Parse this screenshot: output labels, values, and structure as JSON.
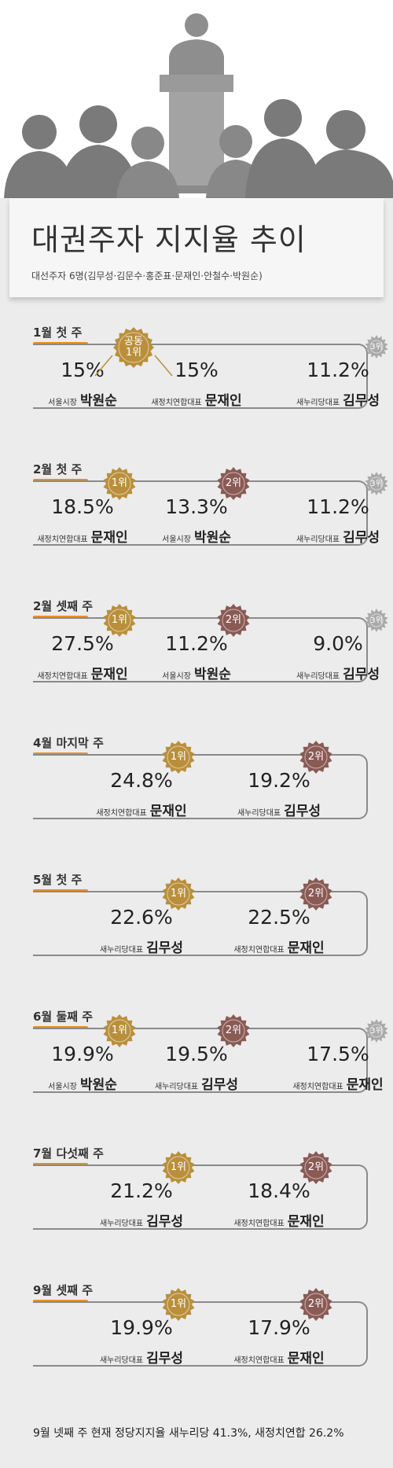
{
  "title": "대권주자 지지율 추이",
  "subtitle": "대선주자 6명(김무성·김문수·홍준표·문재인·안철수·박원순)",
  "colors": {
    "rank1": "#b98f3c",
    "rank2": "#8a5a55",
    "rank3": "#a9a9a9",
    "accent": "#e8901e"
  },
  "chart_data": {
    "type": "table",
    "title": "대권주자 지지율 추이",
    "subtitle": "대선주자 6명(김무성·김문수·홍준표·문재인·안철수·박원순)",
    "periods": [
      {
        "label": "1월 첫 주",
        "candidates": [
          {
            "role": "서울시장",
            "name": "박원순",
            "value": 15,
            "display": "15%",
            "rank": "공동\n1위",
            "badge": "shared"
          },
          {
            "role": "새정치연합대표",
            "name": "문재인",
            "value": 15,
            "display": "15%",
            "rank": "",
            "badge": "none"
          },
          {
            "role": "새누리당대표",
            "name": "김무성",
            "value": 11.2,
            "display": "11.2%",
            "rank": "3위",
            "badge": "3"
          }
        ]
      },
      {
        "label": "2월 첫 주",
        "candidates": [
          {
            "role": "새정치연합대표",
            "name": "문재인",
            "value": 18.5,
            "display": "18.5%",
            "rank": "1위",
            "badge": "1"
          },
          {
            "role": "서울시장",
            "name": "박원순",
            "value": 13.3,
            "display": "13.3%",
            "rank": "2위",
            "badge": "2"
          },
          {
            "role": "새누리당대표",
            "name": "김무성",
            "value": 11.2,
            "display": "11.2%",
            "rank": "3위",
            "badge": "3"
          }
        ]
      },
      {
        "label": "2월 셋째 주",
        "candidates": [
          {
            "role": "새정치연합대표",
            "name": "문재인",
            "value": 27.5,
            "display": "27.5%",
            "rank": "1위",
            "badge": "1"
          },
          {
            "role": "서울시장",
            "name": "박원순",
            "value": 11.2,
            "display": "11.2%",
            "rank": "2위",
            "badge": "2"
          },
          {
            "role": "새누리당대표",
            "name": "김무성",
            "value": 9.0,
            "display": "9.0%",
            "rank": "3위",
            "badge": "3"
          }
        ]
      },
      {
        "label": "4월 마지막 주",
        "candidates": [
          {
            "role": "새정치연합대표",
            "name": "문재인",
            "value": 24.8,
            "display": "24.8%",
            "rank": "1위",
            "badge": "1"
          },
          {
            "role": "새누리당대표",
            "name": "김무성",
            "value": 19.2,
            "display": "19.2%",
            "rank": "2위",
            "badge": "2"
          }
        ]
      },
      {
        "label": "5월 첫 주",
        "candidates": [
          {
            "role": "새누리당대표",
            "name": "김무성",
            "value": 22.6,
            "display": "22.6%",
            "rank": "1위",
            "badge": "1"
          },
          {
            "role": "새정치연합대표",
            "name": "문재인",
            "value": 22.5,
            "display": "22.5%",
            "rank": "2위",
            "badge": "2"
          }
        ]
      },
      {
        "label": "6월 둘째 주",
        "candidates": [
          {
            "role": "서울시장",
            "name": "박원순",
            "value": 19.9,
            "display": "19.9%",
            "rank": "1위",
            "badge": "1"
          },
          {
            "role": "새누리당대표",
            "name": "김무성",
            "value": 19.5,
            "display": "19.5%",
            "rank": "2위",
            "badge": "2"
          },
          {
            "role": "새정치연합대표",
            "name": "문재인",
            "value": 17.5,
            "display": "17.5%",
            "rank": "3위",
            "badge": "3"
          }
        ]
      },
      {
        "label": "7월 다섯째 주",
        "candidates": [
          {
            "role": "새누리당대표",
            "name": "김무성",
            "value": 21.2,
            "display": "21.2%",
            "rank": "1위",
            "badge": "1"
          },
          {
            "role": "새정치연합대표",
            "name": "문재인",
            "value": 18.4,
            "display": "18.4%",
            "rank": "2위",
            "badge": "2"
          }
        ]
      },
      {
        "label": "9월 셋째 주",
        "candidates": [
          {
            "role": "새누리당대표",
            "name": "김무성",
            "value": 19.9,
            "display": "19.9%",
            "rank": "1위",
            "badge": "1"
          },
          {
            "role": "새정치연합대표",
            "name": "문재인",
            "value": 17.9,
            "display": "17.9%",
            "rank": "2위",
            "badge": "2"
          }
        ]
      }
    ],
    "footnote": "9월 넷째 주 현재 정당지지율 새누리당 41.3%, 새정치연합 26.2%"
  }
}
